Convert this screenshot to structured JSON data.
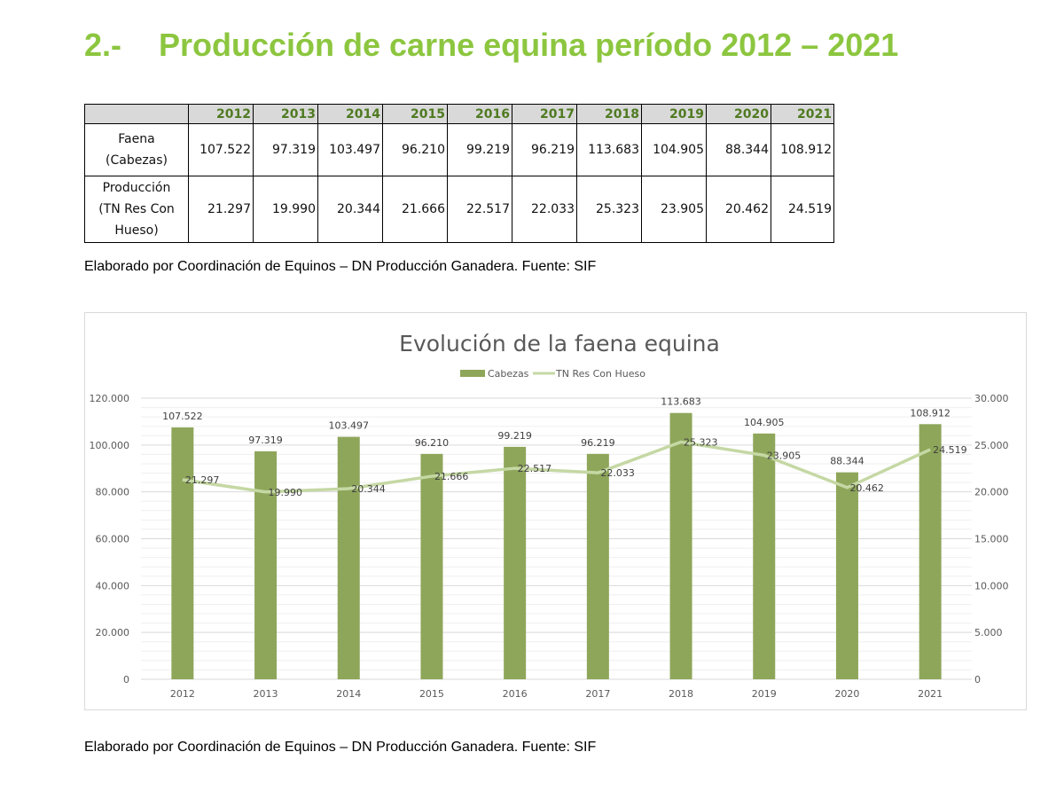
{
  "heading": {
    "number": "2.-",
    "text": "Producción de carne equina período 2012 – 2021"
  },
  "table": {
    "years": [
      "2012",
      "2013",
      "2014",
      "2015",
      "2016",
      "2017",
      "2018",
      "2019",
      "2020",
      "2021"
    ],
    "rows": [
      {
        "label": "Faena (Cabezas)",
        "values": [
          "107.522",
          "97.319",
          "103.497",
          "96.210",
          "99.219",
          "96.219",
          "113.683",
          "104.905",
          "88.344",
          "108.912"
        ]
      },
      {
        "label": "Producción (TN Res Con Hueso)",
        "values": [
          "21.297",
          "19.990",
          "20.344",
          "21.666",
          "22.517",
          "22.033",
          "25.323",
          "23.905",
          "20.462",
          "24.519"
        ]
      }
    ]
  },
  "source_note_1": "Elaborado por Coordinación de Equinos – DN Producción Ganadera. Fuente: SIF",
  "source_note_2": "Elaborado por Coordinación de Equinos – DN Producción Ganadera. Fuente: SIF",
  "chart_data": {
    "type": "bar+line",
    "title": "Evolución de la faena equina",
    "legend_position": "top",
    "categories": [
      "2012",
      "2013",
      "2014",
      "2015",
      "2016",
      "2017",
      "2018",
      "2019",
      "2020",
      "2021"
    ],
    "series": [
      {
        "name": "Cabezas",
        "type": "bar",
        "axis": "left",
        "color": "#8ea65a",
        "values": [
          107522,
          97319,
          103497,
          96210,
          99219,
          96219,
          113683,
          104905,
          88344,
          108912
        ],
        "labels": [
          "107.522",
          "97.319",
          "103.497",
          "96.210",
          "99.219",
          "96.219",
          "113.683",
          "104.905",
          "88.344",
          "108.912"
        ]
      },
      {
        "name": "TN Res Con Hueso",
        "type": "line",
        "axis": "right",
        "color": "#c5d8a4",
        "values": [
          21297,
          19990,
          20344,
          21666,
          22517,
          22033,
          25323,
          23905,
          20462,
          24519
        ],
        "labels": [
          "21.297",
          "19.990",
          "20.344",
          "21.666",
          "22.517",
          "22.033",
          "25.323",
          "23.905",
          "20.462",
          "24.519"
        ]
      }
    ],
    "y_left": {
      "range": [
        0,
        120000
      ],
      "ticks": [
        "0",
        "20.000",
        "40.000",
        "60.000",
        "80.000",
        "100.000",
        "120.000"
      ]
    },
    "y_right": {
      "range": [
        0,
        30000
      ],
      "ticks": [
        "0",
        "5.000",
        "10.000",
        "15.000",
        "20.000",
        "25.000",
        "30.000"
      ]
    },
    "grid": true
  }
}
